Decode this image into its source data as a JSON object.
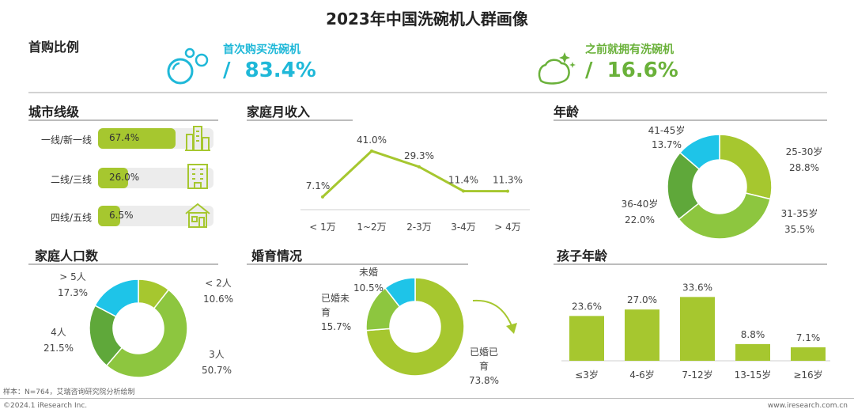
{
  "title": "2023年中国洗碗机人群画像",
  "first_purchase": {
    "section": "首购比例",
    "first": {
      "label": "首次购买洗碗机",
      "value": "/  83.4%",
      "color": "#1fb8d8"
    },
    "prior": {
      "label": "之前就拥有洗碗机",
      "value": "/  16.6%",
      "color": "#6ab13a"
    }
  },
  "city": {
    "section": "城市线级",
    "items": [
      {
        "label": "一线/新一线",
        "value": 67.4,
        "text": "67.4%",
        "icon": "city-buildings-icon"
      },
      {
        "label": "二线/三线",
        "value": 26.0,
        "text": "26.0%",
        "icon": "office-building-icon"
      },
      {
        "label": "四线/五线",
        "value": 6.5,
        "text": "6.5%",
        "icon": "house-icon"
      }
    ]
  },
  "income": {
    "section": "家庭月收入",
    "chart_data": {
      "type": "line",
      "categories": [
        "< 1万",
        "1~2万",
        "2-3万",
        "3-4万",
        "> 4万"
      ],
      "values": [
        7.1,
        41.0,
        29.3,
        11.4,
        11.3
      ],
      "labels": [
        "7.1%",
        "41.0%",
        "29.3%",
        "11.4%",
        "11.3%"
      ],
      "ylim": [
        0,
        45
      ],
      "color": "#a6c72f"
    }
  },
  "age": {
    "section": "年龄",
    "chart_data": {
      "type": "pie",
      "labels": [
        "25-30岁",
        "31-35岁",
        "36-40岁",
        "41-45岁"
      ],
      "values": [
        28.8,
        35.5,
        22.0,
        13.7
      ],
      "texts": [
        "28.8%",
        "35.5%",
        "22.0%",
        "13.7%"
      ],
      "colors": [
        "#a6c72f",
        "#8dc63f",
        "#5fa83a",
        "#1ec4e8"
      ]
    }
  },
  "household": {
    "section": "家庭人口数",
    "chart_data": {
      "type": "pie",
      "labels": [
        "< 2人",
        "3人",
        "4人",
        "> 5人"
      ],
      "values": [
        10.6,
        50.7,
        21.5,
        17.3
      ],
      "texts": [
        "10.6%",
        "50.7%",
        "21.5%",
        "17.3%"
      ],
      "colors": [
        "#a6c72f",
        "#8dc63f",
        "#5fa83a",
        "#1ec4e8"
      ]
    }
  },
  "marriage": {
    "section": "婚育情况",
    "chart_data": {
      "type": "pie",
      "labels": [
        "已婚已育",
        "已婚未育",
        "未婚"
      ],
      "values": [
        73.8,
        15.7,
        10.5
      ],
      "texts": [
        "73.8%",
        "15.7%",
        "10.5%"
      ],
      "colors": [
        "#a6c72f",
        "#8dc63f",
        "#1ec4e8"
      ]
    }
  },
  "kids": {
    "section": "孩子年龄",
    "chart_data": {
      "type": "bar",
      "categories": [
        "≤3岁",
        "4-6岁",
        "7-12岁",
        "13-15岁",
        "≥16岁"
      ],
      "values": [
        23.6,
        27.0,
        33.6,
        8.8,
        7.1
      ],
      "labels": [
        "23.6%",
        "27.0%",
        "33.6%",
        "8.8%",
        "7.1%"
      ],
      "ylim": [
        0,
        35
      ],
      "color": "#a6c72f"
    }
  },
  "footer": {
    "sample": "样本：N=764，艾瑞咨询研究院分析绘制",
    "copyright": "©2024.1 iResearch Inc.",
    "site": "www.iresearch.com.cn"
  }
}
